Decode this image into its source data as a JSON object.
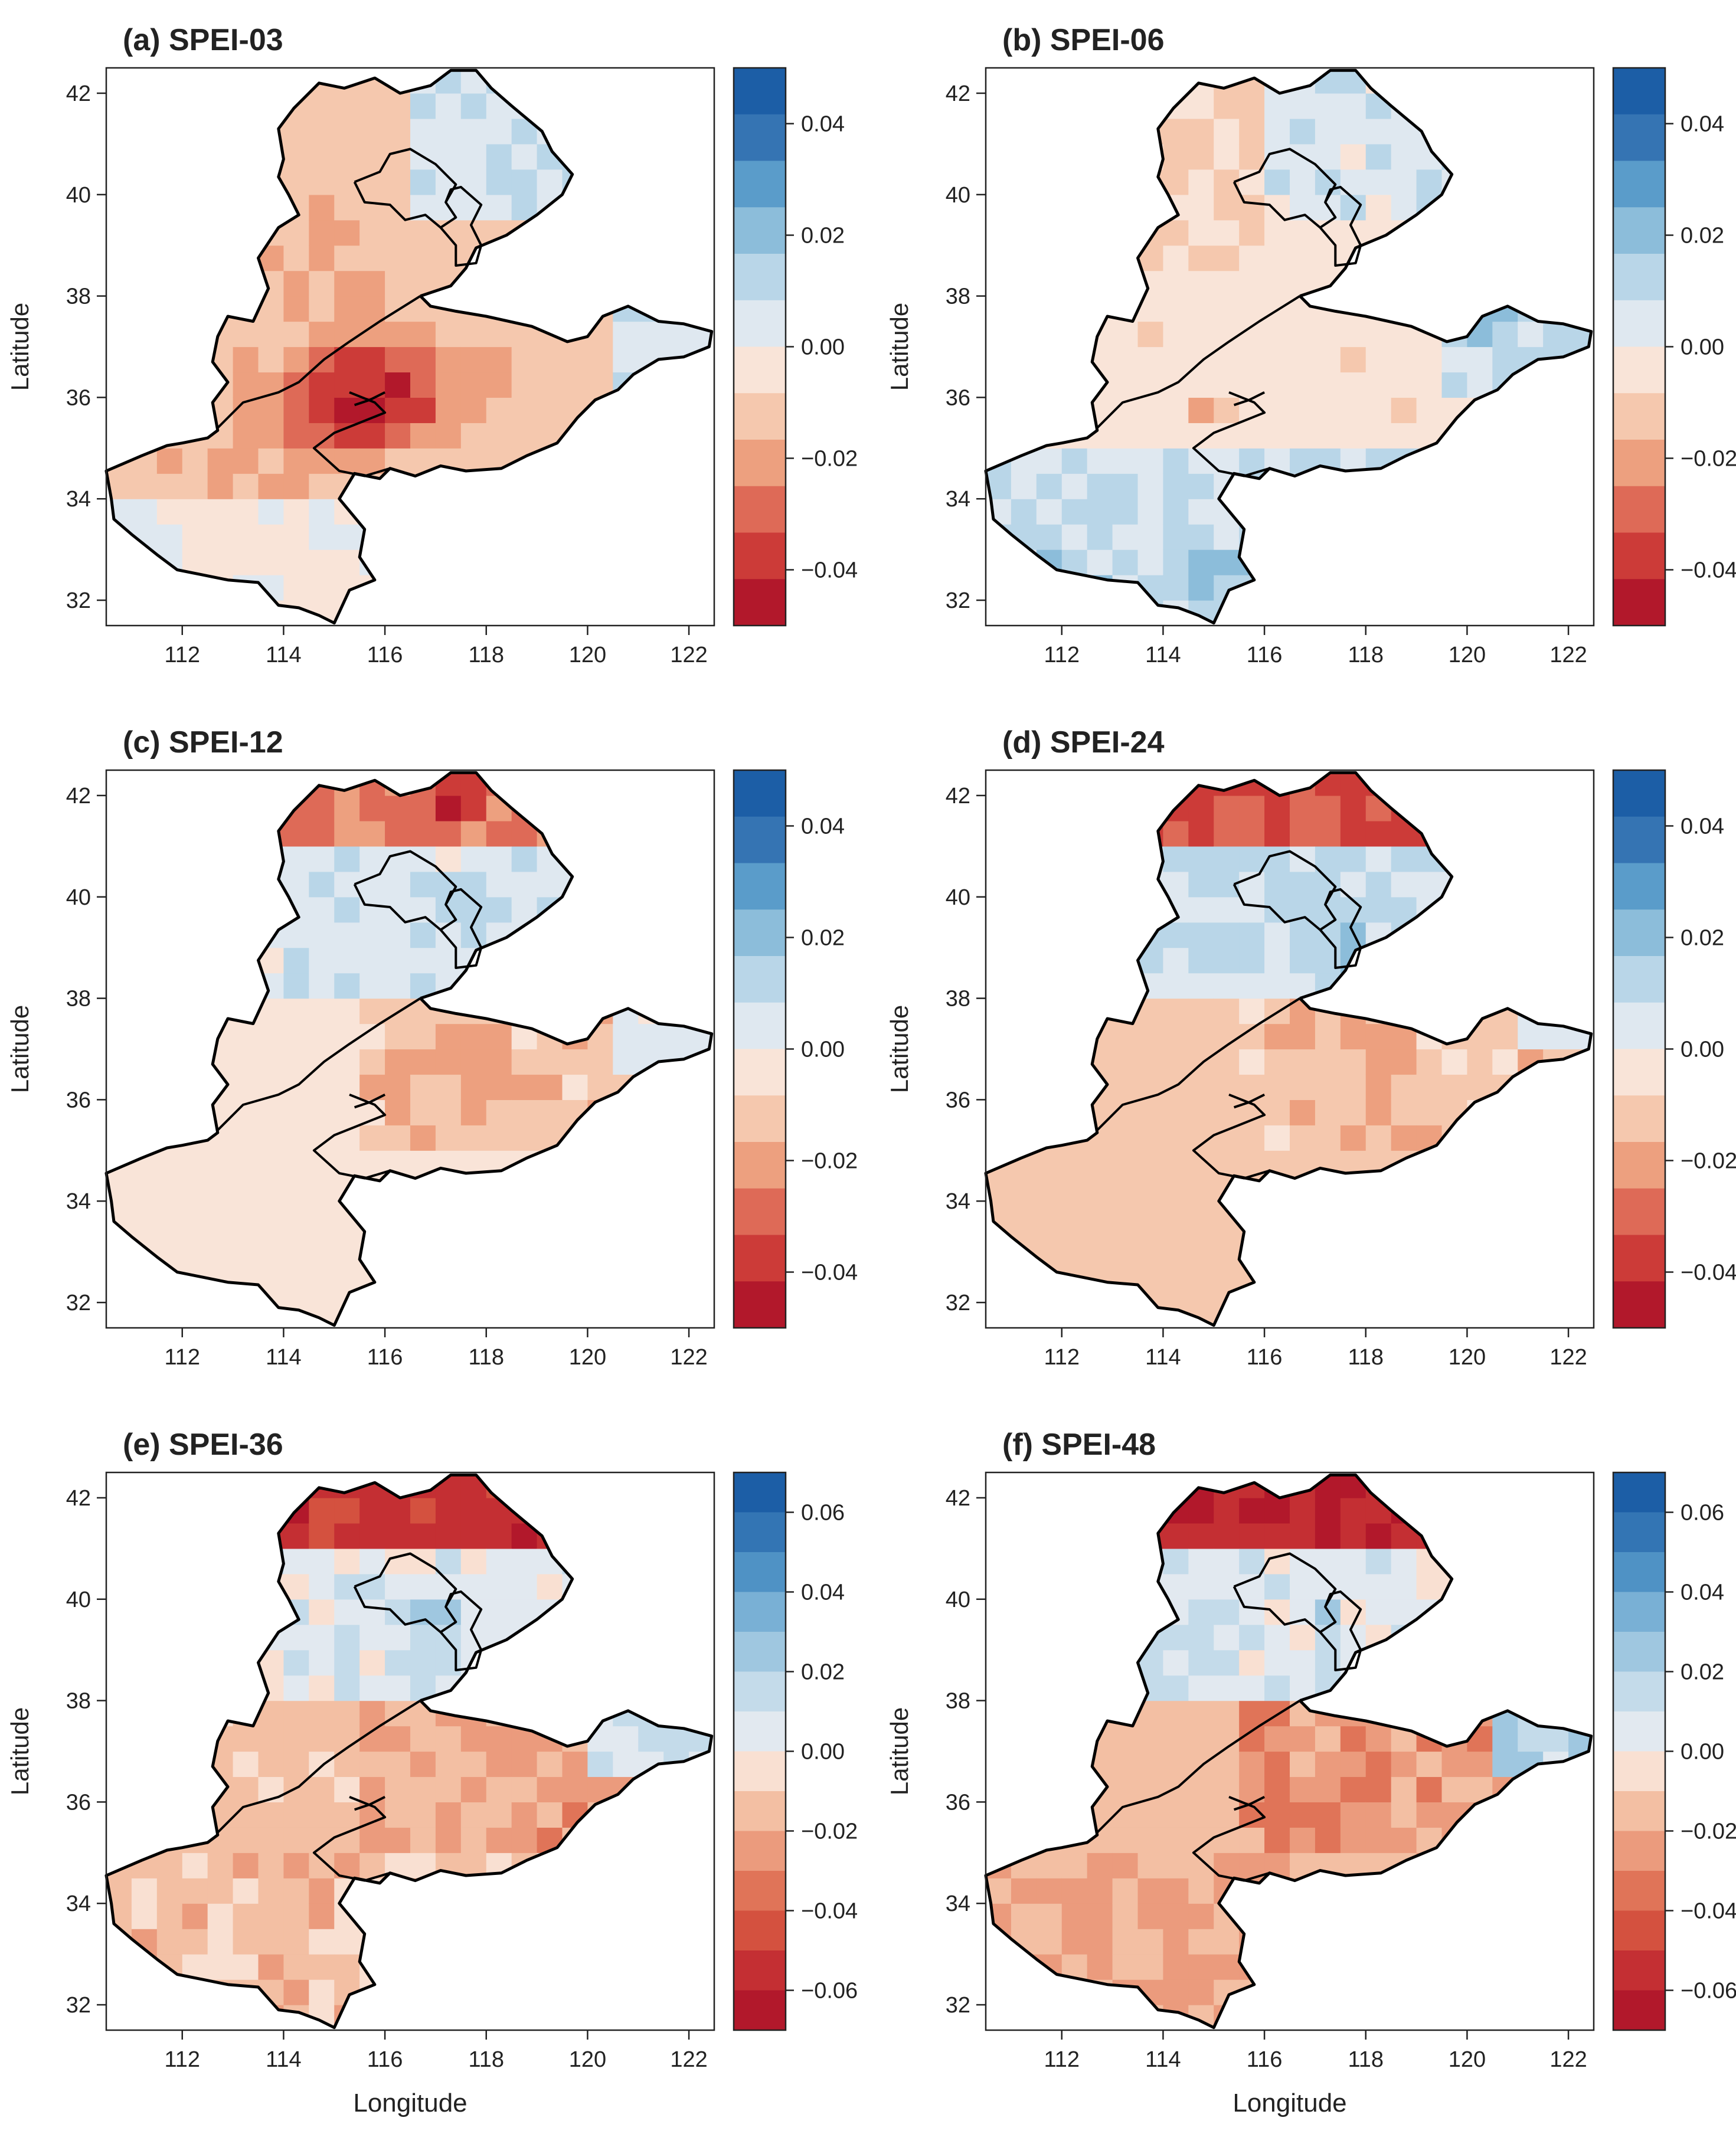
{
  "figure": {
    "xlabel": "Longitude",
    "ylabel": "Latitude",
    "x_ticks": [
      "112",
      "114",
      "116",
      "118",
      "120",
      "122"
    ],
    "y_ticks": [
      "32",
      "34",
      "36",
      "38",
      "40",
      "42"
    ],
    "xlim": [
      110.5,
      122.5
    ],
    "ylim": [
      31.5,
      42.5
    ]
  },
  "colors": {
    "ramp_small": [
      "#b2182b",
      "#cc3b38",
      "#de6a57",
      "#eda07f",
      "#f5c8ae",
      "#f9e4d8",
      "#dfe8f0",
      "#b9d6e8",
      "#8cbdda",
      "#5a9cca",
      "#3574b3",
      "#1c5ea6"
    ],
    "ramp_large": [
      "#b2182b",
      "#c42f33",
      "#d4513f",
      "#e07458",
      "#eb9b7d",
      "#f3bfa3",
      "#f9e0d2",
      "#e2e9f0",
      "#c4dbea",
      "#9fc7e0",
      "#79b0d5",
      "#4f92c5",
      "#3375b4",
      "#1c5ea6"
    ]
  },
  "panels": [
    {
      "title": "(a) SPEI-03",
      "legend_ticks": [
        "0.04",
        "0.02",
        "0.00",
        "−0.02",
        "−0.04"
      ],
      "legend_values": [
        0.04,
        0.02,
        0.0,
        -0.02,
        -0.04
      ],
      "legend_range": [
        -0.05,
        0.05
      ],
      "ramp": "ramp_small",
      "pattern": "a"
    },
    {
      "title": "(b) SPEI-06",
      "legend_ticks": [
        "0.04",
        "0.02",
        "0.00",
        "−0.02",
        "−0.04"
      ],
      "legend_values": [
        0.04,
        0.02,
        0.0,
        -0.02,
        -0.04
      ],
      "legend_range": [
        -0.05,
        0.05
      ],
      "ramp": "ramp_small",
      "pattern": "b"
    },
    {
      "title": "(c) SPEI-12",
      "legend_ticks": [
        "0.04",
        "0.02",
        "0.00",
        "−0.02",
        "−0.04"
      ],
      "legend_values": [
        0.04,
        0.02,
        0.0,
        -0.02,
        -0.04
      ],
      "legend_range": [
        -0.05,
        0.05
      ],
      "ramp": "ramp_small",
      "pattern": "c"
    },
    {
      "title": "(d) SPEI-24",
      "legend_ticks": [
        "0.04",
        "0.02",
        "0.00",
        "−0.02",
        "−0.04"
      ],
      "legend_values": [
        0.04,
        0.02,
        0.0,
        -0.02,
        -0.04
      ],
      "legend_range": [
        -0.05,
        0.05
      ],
      "ramp": "ramp_small",
      "pattern": "d"
    },
    {
      "title": "(e) SPEI-36",
      "legend_ticks": [
        "0.06",
        "0.04",
        "0.02",
        "0.00",
        "−0.02",
        "−0.04",
        "−0.06"
      ],
      "legend_values": [
        0.06,
        0.04,
        0.02,
        0.0,
        -0.02,
        -0.04,
        -0.06
      ],
      "legend_range": [
        -0.07,
        0.07
      ],
      "ramp": "ramp_large",
      "pattern": "e"
    },
    {
      "title": "(f) SPEI-48",
      "legend_ticks": [
        "0.06",
        "0.04",
        "0.02",
        "0.00",
        "−0.02",
        "−0.04",
        "−0.06"
      ],
      "legend_values": [
        0.06,
        0.04,
        0.02,
        0.0,
        -0.02,
        -0.04,
        -0.06
      ],
      "legend_range": [
        -0.07,
        0.07
      ],
      "ramp": "ramp_large",
      "pattern": "f"
    }
  ]
}
